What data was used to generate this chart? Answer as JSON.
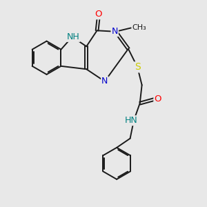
{
  "bg_color": "#e8e8e8",
  "bond_color": "#1a1a1a",
  "atom_colors": {
    "O": "#ff0000",
    "N": "#0000cc",
    "NH": "#008080",
    "S": "#cccc00",
    "C": "#1a1a1a"
  },
  "lw": 1.4,
  "fs": 8.5
}
